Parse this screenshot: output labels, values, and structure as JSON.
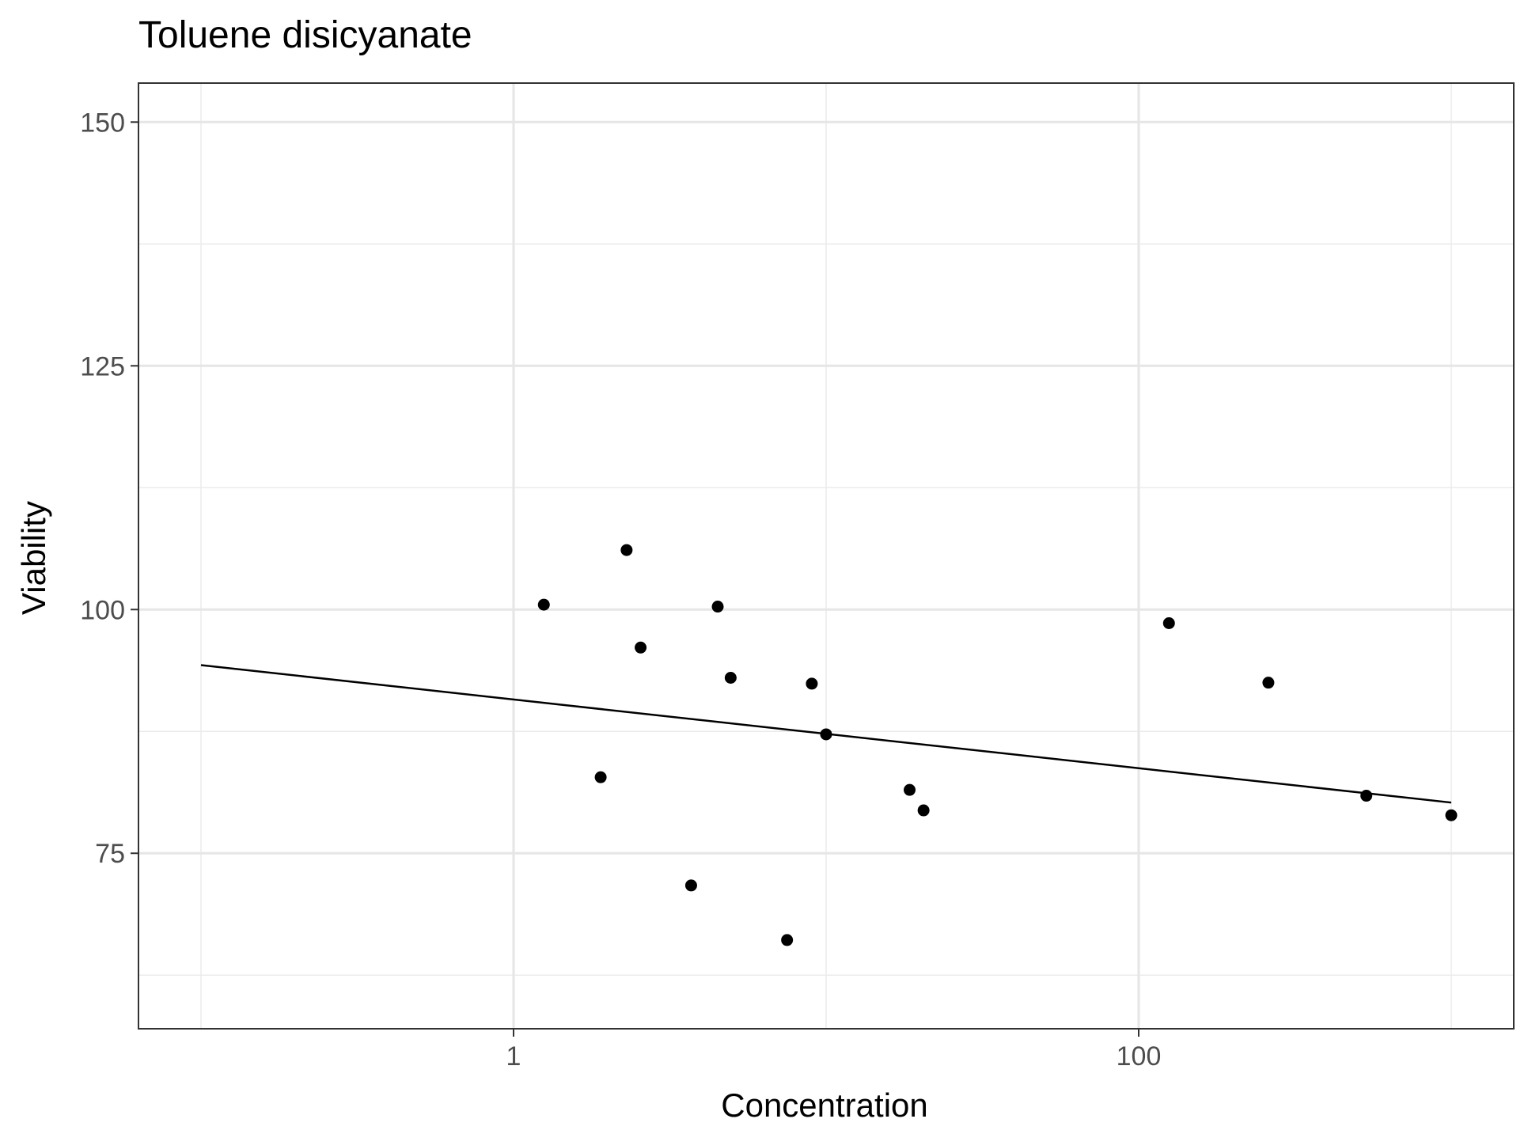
{
  "chart_data": {
    "type": "scatter",
    "title": "Toluene disicyanate",
    "xlabel": "Concentration",
    "ylabel": "Viability",
    "x_scale": "log10",
    "xlim": [
      0.1,
      1000
    ],
    "ylim": [
      57,
      154
    ],
    "x_ticks": [
      1,
      100
    ],
    "x_tick_labels": [
      "1",
      "100"
    ],
    "y_ticks": [
      75,
      100,
      125,
      150
    ],
    "y_tick_labels": [
      "75",
      "100",
      "125",
      "150"
    ],
    "grid": true,
    "points": [
      {
        "x": 1.25,
        "y": 100.5
      },
      {
        "x": 1.9,
        "y": 82.8
      },
      {
        "x": 2.3,
        "y": 106.1
      },
      {
        "x": 2.55,
        "y": 96.1
      },
      {
        "x": 3.7,
        "y": 71.7
      },
      {
        "x": 4.5,
        "y": 100.3
      },
      {
        "x": 4.95,
        "y": 93.0
      },
      {
        "x": 7.5,
        "y": 66.1
      },
      {
        "x": 9.0,
        "y": 92.4
      },
      {
        "x": 10.0,
        "y": 87.2
      },
      {
        "x": 18.5,
        "y": 81.5
      },
      {
        "x": 20.5,
        "y": 79.4
      },
      {
        "x": 125,
        "y": 98.6
      },
      {
        "x": 260,
        "y": 92.5
      },
      {
        "x": 535,
        "y": 80.9
      },
      {
        "x": 1000,
        "y": 78.9
      }
    ],
    "fit_line": {
      "x": [
        0.1,
        1000
      ],
      "y": [
        94.3,
        80.2
      ]
    }
  }
}
